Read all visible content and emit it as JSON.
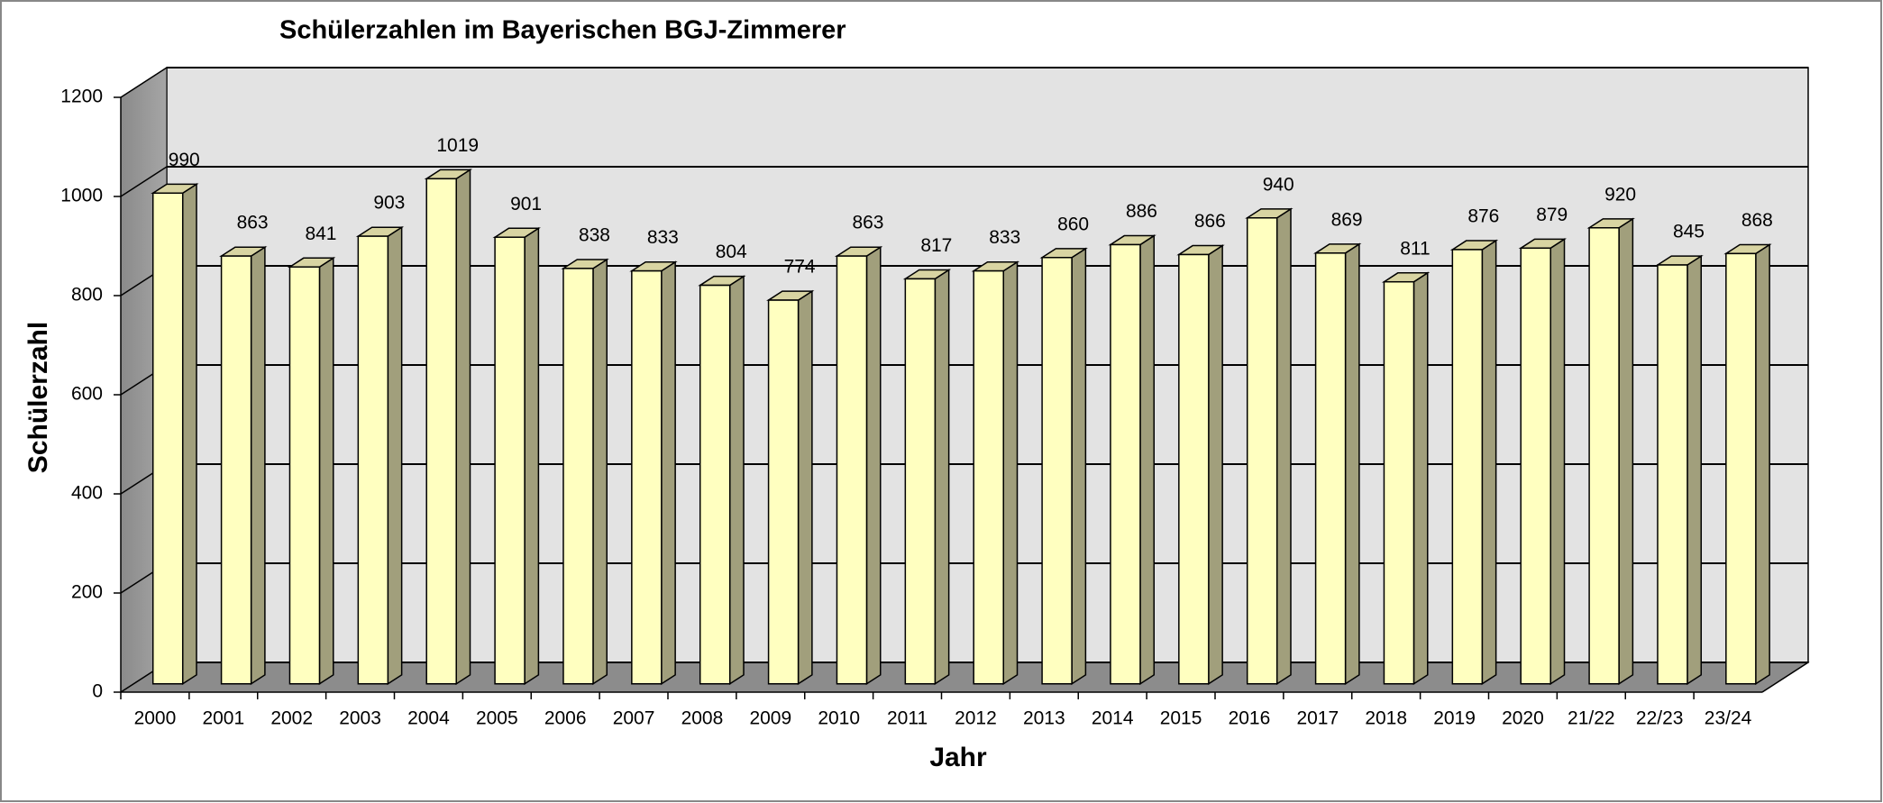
{
  "chart_data": {
    "type": "bar3d",
    "title": "Schülerzahlen im Bayerischen BGJ-Zimmerer",
    "x_label": "Jahr",
    "y_label": "Schülerzahl",
    "categories": [
      "2000",
      "2001",
      "2002",
      "2003",
      "2004",
      "2005",
      "2006",
      "2007",
      "2008",
      "2009",
      "2010",
      "2011",
      "2012",
      "2013",
      "2014",
      "2015",
      "2016",
      "2017",
      "2018",
      "2019",
      "2020",
      "21/22",
      "22/23",
      "23/24"
    ],
    "values": [
      990,
      863,
      841,
      903,
      1019,
      901,
      838,
      833,
      804,
      774,
      863,
      817,
      833,
      860,
      886,
      866,
      940,
      869,
      811,
      876,
      879,
      920,
      845,
      868
    ],
    "color": "#ffffc0",
    "ylim": [
      0,
      1200
    ],
    "yticks": [
      0,
      200,
      400,
      600,
      800,
      1000,
      1200
    ],
    "grid": true
  }
}
